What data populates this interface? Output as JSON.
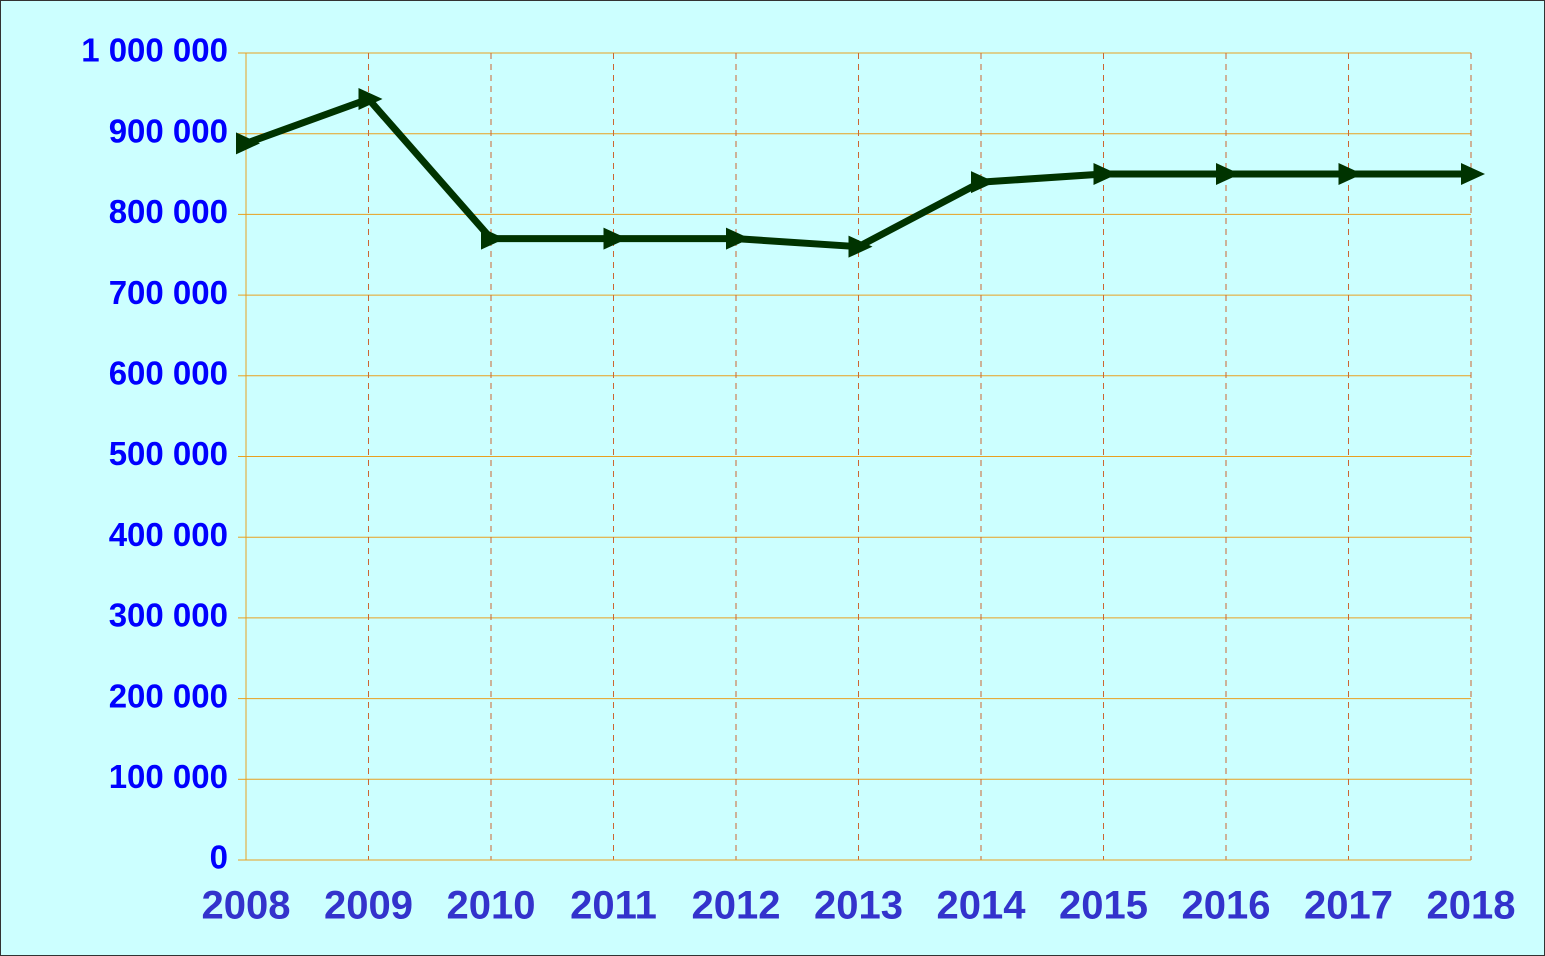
{
  "chart_data": {
    "type": "line",
    "x": [
      2008,
      2009,
      2010,
      2011,
      2012,
      2013,
      2014,
      2015,
      2016,
      2017,
      2018
    ],
    "series": [
      {
        "color": "#003300",
        "values": [
          888000,
          943000,
          770000,
          770000,
          770000,
          760000,
          840000,
          850000,
          850000,
          850000,
          850000
        ]
      }
    ],
    "xlim": [
      2008,
      2018
    ],
    "xticks": [
      2008,
      2009,
      2010,
      2011,
      2012,
      2013,
      2014,
      2015,
      2016,
      2017,
      2018
    ],
    "ylim": [
      0,
      1000000
    ],
    "yticks": [
      0,
      {
        "value": 100000,
        "label": "100 000"
      },
      {
        "value": 200000,
        "label": "200 000"
      },
      {
        "value": 300000,
        "label": "300 000"
      },
      {
        "value": 400000,
        "label": "400 000"
      },
      {
        "value": 500000,
        "label": "500 000"
      },
      {
        "value": 600000,
        "label": "600 000"
      },
      {
        "value": 700000,
        "label": "700 000"
      },
      {
        "value": 800000,
        "label": "800 000"
      },
      {
        "value": 900000,
        "label": "900 000"
      },
      {
        "value": 1000000,
        "label": "1 000 000"
      }
    ],
    "grid": true
  }
}
